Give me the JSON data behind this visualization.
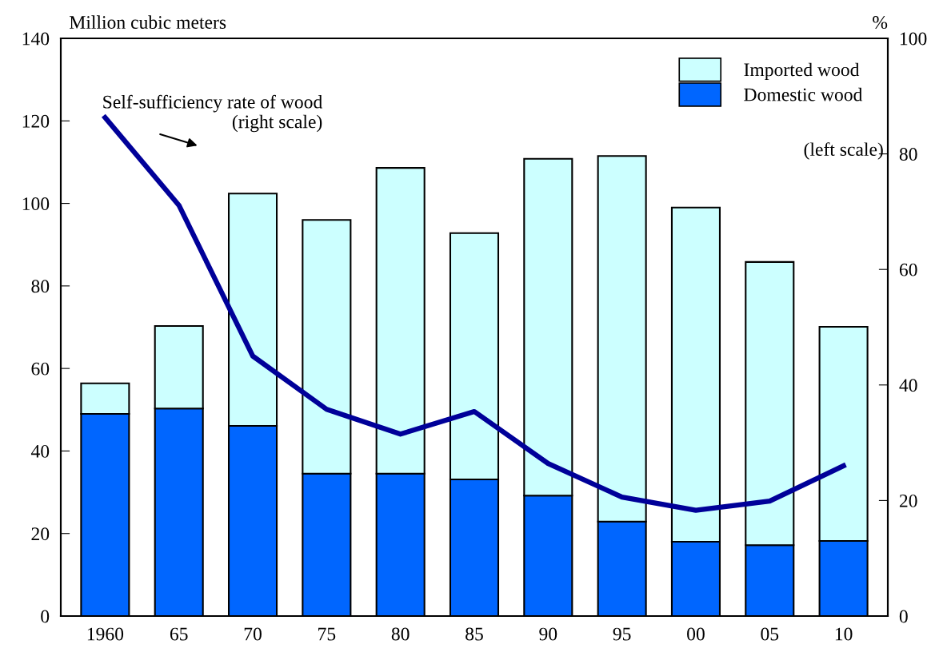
{
  "chart_data": {
    "type": "bar",
    "stacked": true,
    "categories": [
      "1960",
      "65",
      "70",
      "75",
      "80",
      "85",
      "90",
      "95",
      "00",
      "05",
      "10"
    ],
    "series": [
      {
        "name": "Domestic wood",
        "color": "#0066ff",
        "values": [
          49.0,
          50.3,
          46.1,
          34.5,
          34.5,
          33.1,
          29.2,
          22.9,
          18.0,
          17.2,
          18.2
        ]
      },
      {
        "name": "Imported wood",
        "color": "#ccffff",
        "values": [
          7.4,
          20.0,
          56.3,
          61.5,
          74.1,
          59.7,
          81.6,
          88.6,
          81.0,
          68.6,
          51.9
        ]
      },
      {
        "type": "line",
        "axis": "y2",
        "color": "#000099",
        "values": [
          86.3,
          71.1,
          45.0,
          35.8,
          31.5,
          35.4,
          26.4,
          20.6,
          18.3,
          19.9,
          26.0
        ]
      }
    ],
    "ylabel": "Million cubic meters",
    "y2label": "%",
    "ylim": [
      0,
      140
    ],
    "yticks": [
      0,
      20,
      40,
      60,
      80,
      100,
      120,
      140
    ],
    "y2lim": [
      0,
      100
    ],
    "y2ticks": [
      0,
      20,
      40,
      60,
      80,
      100
    ],
    "annotations": [
      "Self-sufficiency rate of wood\n(right scale)",
      "(left scale)"
    ],
    "legend": "top right",
    "grid": false,
    "marker": "none",
    "line_style": "solid"
  }
}
